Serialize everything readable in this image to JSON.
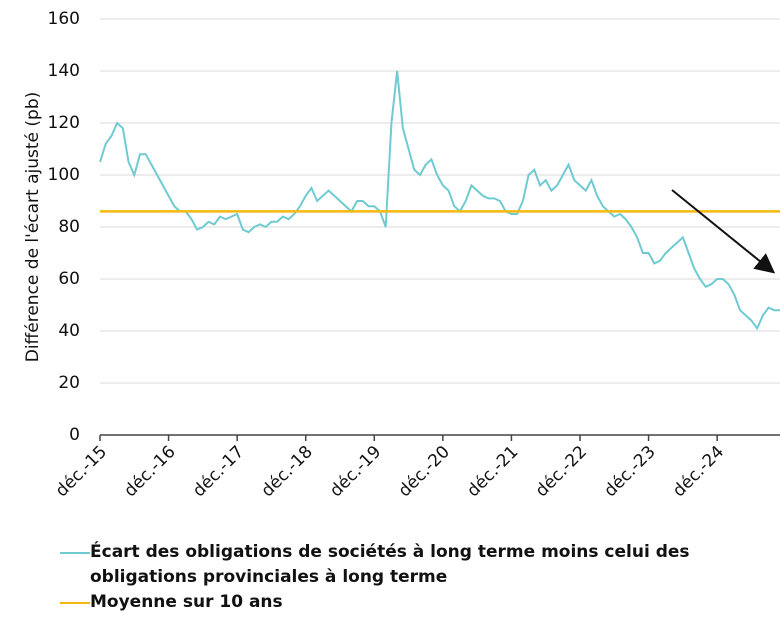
{
  "chart_data": {
    "type": "line",
    "y_label": "Différence de l'écart ajusté (pb)",
    "categories": [
      "déc.-15",
      null,
      null,
      null,
      null,
      null,
      null,
      null,
      null,
      null,
      null,
      null,
      "déc.-16",
      null,
      null,
      null,
      null,
      null,
      null,
      null,
      null,
      null,
      null,
      null,
      "déc.-17",
      null,
      null,
      null,
      null,
      null,
      null,
      null,
      null,
      null,
      null,
      null,
      "déc.-18",
      null,
      null,
      null,
      null,
      null,
      null,
      null,
      null,
      null,
      null,
      null,
      "déc.-19",
      null,
      null,
      null,
      null,
      null,
      null,
      null,
      null,
      null,
      null,
      null,
      "déc.-20",
      null,
      null,
      null,
      null,
      null,
      null,
      null,
      null,
      null,
      null,
      null,
      "déc.-21",
      null,
      null,
      null,
      null,
      null,
      null,
      null,
      null,
      null,
      null,
      null,
      "déc.-22",
      null,
      null,
      null,
      null,
      null,
      null,
      null,
      null,
      null,
      null,
      null,
      "déc.-23",
      null,
      null,
      null,
      null,
      null,
      null,
      null,
      null,
      null,
      null,
      null,
      "déc.-24",
      null,
      null,
      null,
      null,
      null,
      null,
      null,
      null,
      null,
      null,
      null
    ],
    "series": [
      {
        "name": "Écart des obligations de sociétés à long terme moins celui des obligations provinciales à long terme",
        "color": "#6fcbd1",
        "values": [
          105,
          112,
          115,
          120,
          118,
          105,
          100,
          108,
          108,
          104,
          100,
          96,
          92,
          88,
          86,
          86,
          83,
          79,
          80,
          82,
          81,
          84,
          83,
          84,
          85,
          79,
          78,
          80,
          81,
          80,
          82,
          82,
          84,
          83,
          85,
          88,
          92,
          95,
          90,
          92,
          94,
          92,
          90,
          88,
          86,
          90,
          90,
          88,
          88,
          86,
          80,
          120,
          140,
          118,
          110,
          102,
          100,
          104,
          106,
          100,
          96,
          94,
          88,
          86,
          90,
          96,
          94,
          92,
          91,
          91,
          90,
          86,
          85,
          85,
          90,
          100,
          102,
          96,
          98,
          94,
          96,
          100,
          104,
          98,
          96,
          94,
          98,
          92,
          88,
          86,
          84,
          85,
          83,
          80,
          76,
          70,
          70,
          66,
          67,
          70,
          72,
          74,
          76,
          70,
          64,
          60,
          57,
          58,
          60,
          60,
          58,
          54,
          48,
          46,
          44,
          41,
          46,
          49,
          48,
          48
        ]
      },
      {
        "name": "Moyenne sur 10 ans",
        "color": "#f5b80f",
        "values": [
          86,
          86,
          86,
          86,
          86,
          86,
          86,
          86,
          86,
          86,
          86,
          86,
          86,
          86,
          86,
          86,
          86,
          86,
          86,
          86,
          86,
          86,
          86,
          86,
          86,
          86,
          86,
          86,
          86,
          86,
          86,
          86,
          86,
          86,
          86,
          86,
          86,
          86,
          86,
          86,
          86,
          86,
          86,
          86,
          86,
          86,
          86,
          86,
          86,
          86,
          86,
          86,
          86,
          86,
          86,
          86,
          86,
          86,
          86,
          86,
          86,
          86,
          86,
          86,
          86,
          86,
          86,
          86,
          86,
          86,
          86,
          86,
          86,
          86,
          86,
          86,
          86,
          86,
          86,
          86,
          86,
          86,
          86,
          86,
          86,
          86,
          86,
          86,
          86,
          86,
          86,
          86,
          86,
          86,
          86,
          86,
          86,
          86,
          86,
          86,
          86,
          86,
          86,
          86,
          86,
          86,
          86,
          86,
          86,
          86,
          86,
          86,
          86,
          86,
          86,
          86,
          86,
          86,
          86,
          86
        ]
      }
    ],
    "ylim": [
      0,
      160
    ],
    "yticks": [
      0,
      20,
      40,
      60,
      80,
      100,
      120,
      140,
      160
    ],
    "grid": true
  }
}
